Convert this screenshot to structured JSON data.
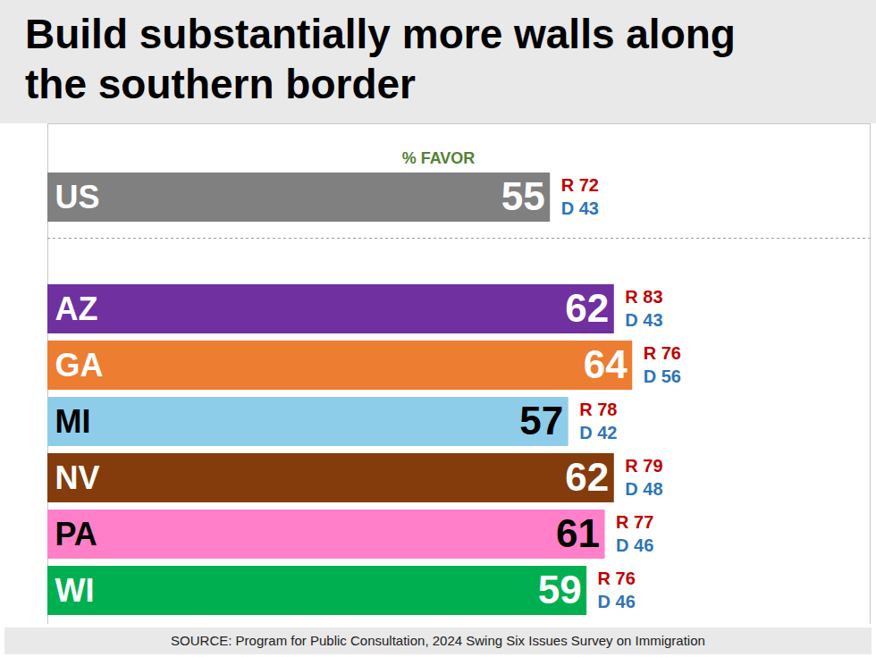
{
  "chart_data": {
    "type": "bar",
    "orientation": "horizontal",
    "title": "Build substantially more walls along the southern border",
    "xlabel": "% FAVOR",
    "caption": "SOURCE: Program for Public Consultation, 2024 Swing Six Issues Survey on Immigration",
    "categories": [
      "US",
      "AZ",
      "GA",
      "MI",
      "NV",
      "PA",
      "WI"
    ],
    "values": [
      55,
      62,
      64,
      57,
      62,
      61,
      59
    ],
    "colors": [
      "#808080",
      "#7030a0",
      "#ed7d31",
      "#8ecdea",
      "#843c0c",
      "#ff80c8",
      "#00b050"
    ],
    "data_labels": true,
    "tick_labels": false,
    "xlim": [
      0,
      90
    ],
    "xticks": [],
    "party_values": [
      {
        "name": "R",
        "color": "#c00000",
        "values": [
          72,
          83,
          76,
          78,
          79,
          77,
          76
        ]
      },
      {
        "name": "D",
        "color": "#2e75b6",
        "values": [
          43,
          43,
          56,
          42,
          48,
          46,
          46
        ]
      }
    ]
  }
}
